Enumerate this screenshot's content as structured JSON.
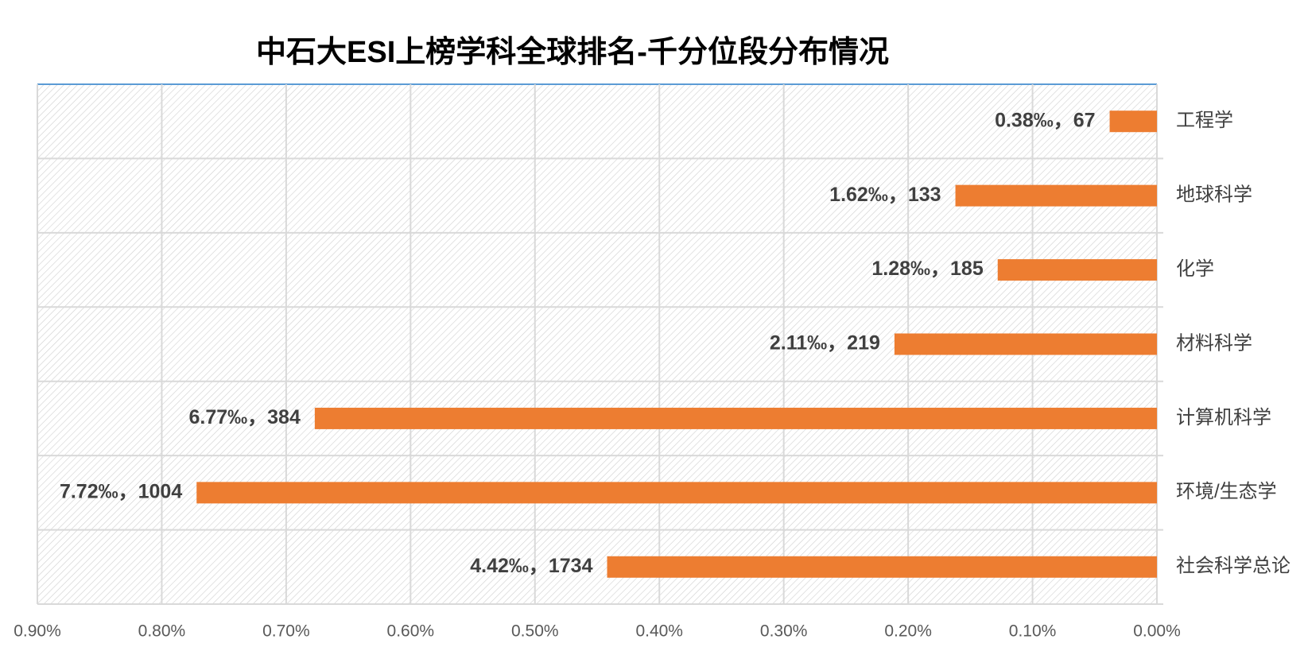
{
  "chart_data": {
    "type": "hbar",
    "title": "中石大ESI上榜学科全球排名-千分位段分布情况",
    "categories": [
      "工程学",
      "地球科学",
      "化学",
      "材料科学",
      "计算机科学",
      "环境/生态学",
      "社会科学总论"
    ],
    "values": [
      0.038,
      0.162,
      0.128,
      0.211,
      0.677,
      0.772,
      0.442
    ],
    "value_labels": [
      "0.38‰，67",
      "1.62‰，133",
      "1.28‰，185",
      "2.11‰，219",
      "6.77‰，384",
      "7.72‰，1004",
      "4.42‰，1734"
    ],
    "color": "#ed7d31",
    "xlim": [
      0.9,
      0
    ],
    "xticks": [
      {
        "value": 0.9,
        "label": "0.90%"
      },
      {
        "value": 0.8,
        "label": "0.80%"
      },
      {
        "value": 0.7,
        "label": "0.70%"
      },
      {
        "value": 0.6,
        "label": "0.60%"
      },
      {
        "value": 0.5,
        "label": "0.50%"
      },
      {
        "value": 0.4,
        "label": "0.40%"
      },
      {
        "value": 0.3,
        "label": "0.30%"
      },
      {
        "value": 0.2,
        "label": "0.20%"
      },
      {
        "value": 0.1,
        "label": "0.10%"
      },
      {
        "value": 0,
        "label": "0.00%"
      }
    ],
    "grid": true
  }
}
